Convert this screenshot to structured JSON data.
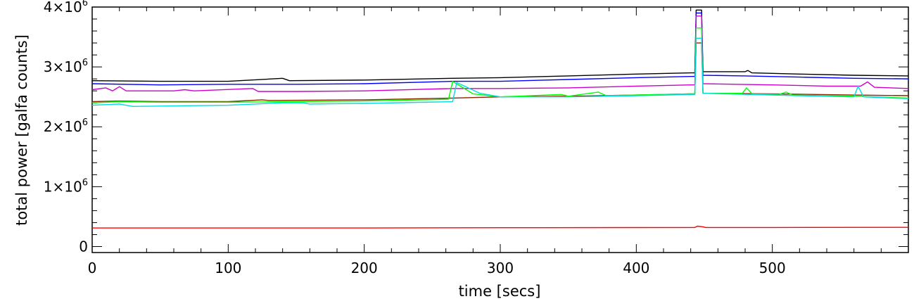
{
  "chart_data": {
    "type": "line",
    "title": "",
    "xlabel": "time [secs]",
    "ylabel": "total power [galfa counts]",
    "xlim": [
      0,
      600
    ],
    "ylim": [
      -100000,
      4000000
    ],
    "x_ticks": [
      0,
      100,
      200,
      300,
      400,
      500
    ],
    "x_tick_labels": [
      "0",
      "100",
      "200",
      "300",
      "400",
      "500"
    ],
    "y_ticks": [
      0,
      1000000,
      2000000,
      3000000,
      4000000
    ],
    "y_tick_labels": [
      {
        "base": "0",
        "exp": ""
      },
      {
        "base": "1×10",
        "exp": "6"
      },
      {
        "base": "2×10",
        "exp": "6"
      },
      {
        "base": "3×10",
        "exp": "6"
      },
      {
        "base": "4×10",
        "exp": "6"
      }
    ],
    "grid": false,
    "series": [
      {
        "color": "#000000",
        "points": [
          [
            0,
            2770000
          ],
          [
            50,
            2760000
          ],
          [
            100,
            2760000
          ],
          [
            140,
            2810000
          ],
          [
            145,
            2770000
          ],
          [
            200,
            2780000
          ],
          [
            265,
            2810000
          ],
          [
            300,
            2820000
          ],
          [
            350,
            2850000
          ],
          [
            400,
            2880000
          ],
          [
            440,
            2900000
          ],
          [
            443,
            2900000
          ],
          [
            444,
            3950000
          ],
          [
            448,
            3950000
          ],
          [
            449,
            2920000
          ],
          [
            480,
            2920000
          ],
          [
            482,
            2940000
          ],
          [
            485,
            2900000
          ],
          [
            520,
            2880000
          ],
          [
            560,
            2860000
          ],
          [
            600,
            2850000
          ]
        ]
      },
      {
        "color": "#0000ff",
        "points": [
          [
            0,
            2720000
          ],
          [
            50,
            2700000
          ],
          [
            100,
            2710000
          ],
          [
            150,
            2710000
          ],
          [
            200,
            2720000
          ],
          [
            265,
            2760000
          ],
          [
            300,
            2760000
          ],
          [
            350,
            2790000
          ],
          [
            400,
            2820000
          ],
          [
            440,
            2840000
          ],
          [
            443,
            2840000
          ],
          [
            444,
            3900000
          ],
          [
            448,
            3900000
          ],
          [
            449,
            2860000
          ],
          [
            480,
            2850000
          ],
          [
            520,
            2830000
          ],
          [
            560,
            2810000
          ],
          [
            600,
            2800000
          ]
        ]
      },
      {
        "color": "#cc00cc",
        "points": [
          [
            0,
            2620000
          ],
          [
            10,
            2650000
          ],
          [
            15,
            2600000
          ],
          [
            20,
            2670000
          ],
          [
            25,
            2600000
          ],
          [
            60,
            2600000
          ],
          [
            68,
            2620000
          ],
          [
            75,
            2600000
          ],
          [
            118,
            2640000
          ],
          [
            122,
            2590000
          ],
          [
            150,
            2590000
          ],
          [
            200,
            2600000
          ],
          [
            265,
            2640000
          ],
          [
            300,
            2640000
          ],
          [
            350,
            2650000
          ],
          [
            400,
            2680000
          ],
          [
            440,
            2700000
          ],
          [
            443,
            2700000
          ],
          [
            444,
            3850000
          ],
          [
            448,
            3850000
          ],
          [
            449,
            2720000
          ],
          [
            500,
            2700000
          ],
          [
            540,
            2680000
          ],
          [
            565,
            2680000
          ],
          [
            570,
            2750000
          ],
          [
            575,
            2660000
          ],
          [
            600,
            2640000
          ]
        ]
      },
      {
        "color": "#8b2500",
        "points": [
          [
            0,
            2420000
          ],
          [
            20,
            2430000
          ],
          [
            50,
            2420000
          ],
          [
            100,
            2420000
          ],
          [
            125,
            2450000
          ],
          [
            130,
            2440000
          ],
          [
            200,
            2450000
          ],
          [
            265,
            2480000
          ],
          [
            300,
            2500000
          ],
          [
            350,
            2510000
          ],
          [
            400,
            2530000
          ],
          [
            440,
            2550000
          ],
          [
            443,
            2550000
          ],
          [
            444,
            3400000
          ],
          [
            448,
            3400000
          ],
          [
            449,
            2560000
          ],
          [
            500,
            2550000
          ],
          [
            560,
            2530000
          ],
          [
            600,
            2520000
          ]
        ]
      },
      {
        "color": "#00ff00",
        "points": [
          [
            0,
            2400000
          ],
          [
            20,
            2420000
          ],
          [
            50,
            2410000
          ],
          [
            100,
            2410000
          ],
          [
            150,
            2420000
          ],
          [
            200,
            2430000
          ],
          [
            262,
            2460000
          ],
          [
            265,
            2760000
          ],
          [
            280,
            2550000
          ],
          [
            300,
            2500000
          ],
          [
            345,
            2540000
          ],
          [
            350,
            2510000
          ],
          [
            372,
            2580000
          ],
          [
            378,
            2520000
          ],
          [
            400,
            2530000
          ],
          [
            440,
            2550000
          ],
          [
            443,
            2550000
          ],
          [
            444,
            3650000
          ],
          [
            448,
            3650000
          ],
          [
            449,
            2560000
          ],
          [
            478,
            2560000
          ],
          [
            481,
            2650000
          ],
          [
            485,
            2550000
          ],
          [
            505,
            2540000
          ],
          [
            510,
            2580000
          ],
          [
            515,
            2530000
          ],
          [
            560,
            2510000
          ],
          [
            600,
            2480000
          ]
        ]
      },
      {
        "color": "#00dddd",
        "points": [
          [
            0,
            2360000
          ],
          [
            20,
            2380000
          ],
          [
            30,
            2340000
          ],
          [
            100,
            2360000
          ],
          [
            140,
            2400000
          ],
          [
            155,
            2400000
          ],
          [
            160,
            2380000
          ],
          [
            200,
            2390000
          ],
          [
            265,
            2420000
          ],
          [
            268,
            2740000
          ],
          [
            285,
            2560000
          ],
          [
            300,
            2500000
          ],
          [
            350,
            2500000
          ],
          [
            400,
            2520000
          ],
          [
            440,
            2540000
          ],
          [
            443,
            2540000
          ],
          [
            444,
            3480000
          ],
          [
            448,
            3480000
          ],
          [
            449,
            2560000
          ],
          [
            520,
            2520000
          ],
          [
            560,
            2500000
          ],
          [
            563,
            2680000
          ],
          [
            567,
            2500000
          ],
          [
            600,
            2470000
          ]
        ]
      },
      {
        "color": "#ff0000",
        "points": [
          [
            0,
            310000
          ],
          [
            100,
            310000
          ],
          [
            200,
            310000
          ],
          [
            300,
            315000
          ],
          [
            440,
            318000
          ],
          [
            443,
            318000
          ],
          [
            445,
            340000
          ],
          [
            449,
            330000
          ],
          [
            451,
            318000
          ],
          [
            500,
            318000
          ],
          [
            600,
            320000
          ]
        ]
      }
    ]
  }
}
